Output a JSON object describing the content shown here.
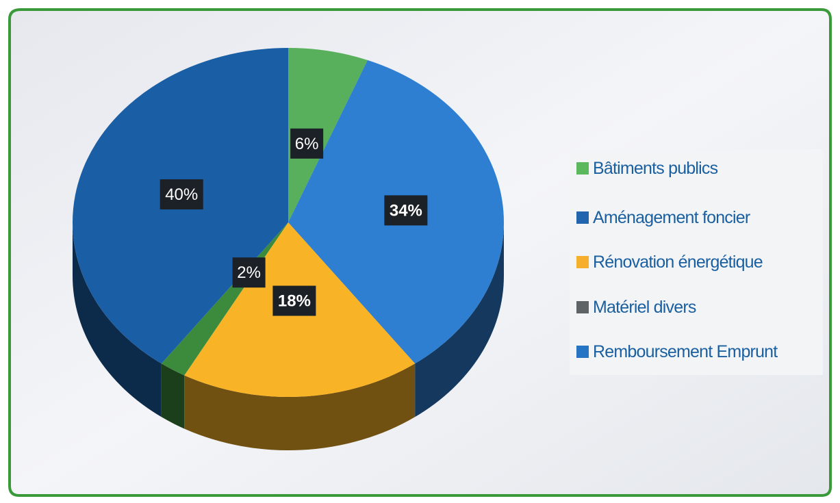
{
  "chart_data": {
    "type": "pie",
    "title": "",
    "categories": [
      "Bâtiments publics",
      "Aménagement foncier",
      "Rénovation énergétique",
      "Matériel divers",
      "Remboursement Emprunt"
    ],
    "values": [
      6,
      34,
      18,
      2,
      40
    ],
    "data_labels": [
      "6%",
      "34%",
      "18%",
      "2%",
      "40%"
    ],
    "colors": [
      "#58b05c",
      "#2e7fd1",
      "#f9b326",
      "#3c8a3c",
      "#1a5fa6"
    ],
    "legend_colors": [
      "#5cb85c",
      "#2065ad",
      "#f6ae2d",
      "#5e6466",
      "#2575c4"
    ],
    "legend_text_color": "#1a5fa0",
    "legend_position": "right",
    "style": "3d"
  }
}
